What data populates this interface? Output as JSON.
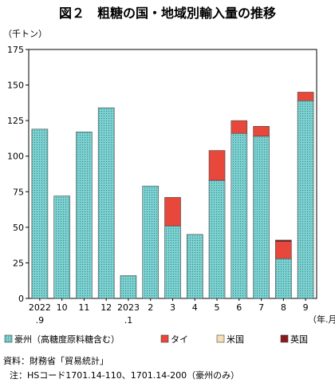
{
  "chart_data": {
    "type": "bar",
    "title": "図２　粗糖の国・地域別輸入量の推移",
    "ylabel": "（千トン）",
    "xlabel": "（年.月）",
    "ylim": [
      0,
      175
    ],
    "yticks": [
      0,
      25,
      50,
      75,
      100,
      125,
      150,
      175
    ],
    "categories": [
      [
        "2022",
        ".9"
      ],
      [
        "10"
      ],
      [
        "11"
      ],
      [
        "12"
      ],
      [
        "2023",
        ".1"
      ],
      [
        "2"
      ],
      [
        "3"
      ],
      [
        "4"
      ],
      [
        "5"
      ],
      [
        "6"
      ],
      [
        "7"
      ],
      [
        "8"
      ],
      [
        "9"
      ]
    ],
    "series": [
      {
        "name": "豪州（高糖度原料糖含む）",
        "color": "#7fd0d0",
        "pattern": "dots",
        "values": [
          119,
          72,
          117,
          134,
          16,
          79,
          51,
          45,
          83,
          116,
          114,
          28,
          139
        ]
      },
      {
        "name": "タイ",
        "color": "#e8473b",
        "values": [
          0,
          0,
          0,
          0,
          0,
          0,
          20,
          0,
          21,
          9,
          7,
          12,
          6
        ]
      },
      {
        "name": "米国",
        "color": "#f5deb3",
        "values": [
          0,
          0,
          0,
          0,
          0,
          0,
          0,
          0,
          0,
          0,
          0,
          0,
          0
        ]
      },
      {
        "name": "英国",
        "color": "#8b1a1a",
        "values": [
          0,
          0,
          0,
          0,
          0,
          0,
          0,
          0,
          0,
          0,
          0,
          1,
          0
        ]
      }
    ],
    "grid": false
  },
  "source_label": "資料：財務省「貿易統計」",
  "note": "注：HSコード1701.14-110、1701.14-200（豪州のみ）"
}
